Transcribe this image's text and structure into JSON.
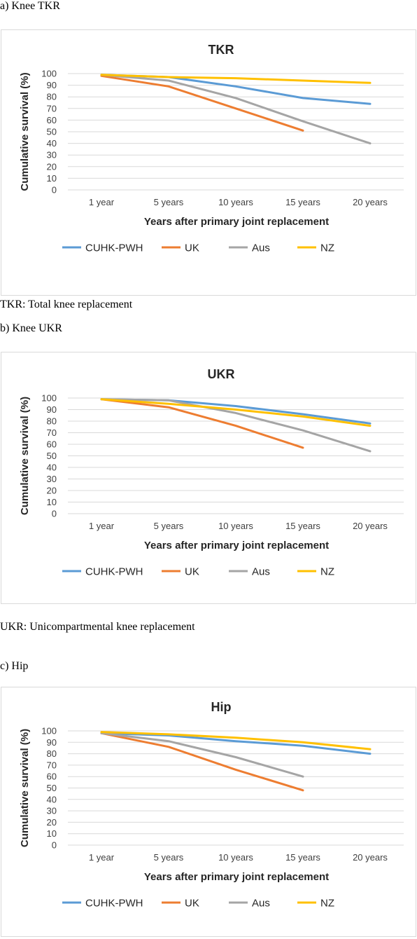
{
  "captions": {
    "a": "a) Knee TKR",
    "tkr_note": "TKR: Total knee replacement",
    "b": "b) Knee UKR",
    "ukr_note": "UKR: Unicompartmental knee replacement",
    "c": "c) Hip"
  },
  "chart_data": [
    {
      "type": "line",
      "title": "TKR",
      "xlabel": "Years after primary joint replacement",
      "ylabel": "Cumulative survival (%)",
      "ylim": [
        0,
        100
      ],
      "yticks": [
        0,
        10,
        20,
        30,
        40,
        50,
        60,
        70,
        80,
        90,
        100
      ],
      "categories": [
        "1 year",
        "5 years",
        "10 years",
        "15 years",
        "20 years"
      ],
      "grid": true,
      "legend": "bottom",
      "series": [
        {
          "name": "CUHK-PWH",
          "color": "#5b9bd5",
          "values": [
            99,
            97,
            89,
            79,
            74
          ]
        },
        {
          "name": "UK",
          "color": "#ed7d31",
          "values": [
            98,
            89,
            70,
            51,
            null
          ]
        },
        {
          "name": "Aus",
          "color": "#a5a5a5",
          "values": [
            99,
            94,
            79,
            59,
            40
          ]
        },
        {
          "name": "NZ",
          "color": "#ffc000",
          "values": [
            99,
            97,
            96,
            94,
            92
          ]
        }
      ]
    },
    {
      "type": "line",
      "title": "UKR",
      "xlabel": "Years after primary joint replacement",
      "ylabel": "Cumulative survival (%)",
      "ylim": [
        0,
        100
      ],
      "yticks": [
        0,
        10,
        20,
        30,
        40,
        50,
        60,
        70,
        80,
        90,
        100
      ],
      "categories": [
        "1 year",
        "5 years",
        "10 years",
        "15 years",
        "20 years"
      ],
      "grid": true,
      "legend": "bottom",
      "series": [
        {
          "name": "CUHK-PWH",
          "color": "#5b9bd5",
          "values": [
            99,
            98,
            93,
            86,
            78
          ]
        },
        {
          "name": "UK",
          "color": "#ed7d31",
          "values": [
            99,
            92,
            76,
            57,
            null
          ]
        },
        {
          "name": "Aus",
          "color": "#a5a5a5",
          "values": [
            99,
            98,
            87,
            72,
            54
          ]
        },
        {
          "name": "NZ",
          "color": "#ffc000",
          "values": [
            99,
            95,
            90,
            84,
            76
          ]
        }
      ]
    },
    {
      "type": "line",
      "title": "Hip",
      "xlabel": "Years after primary joint replacement",
      "ylabel": "Cumulative survival (%)",
      "ylim": [
        0,
        100
      ],
      "yticks": [
        0,
        10,
        20,
        30,
        40,
        50,
        60,
        70,
        80,
        90,
        100
      ],
      "categories": [
        "1 year",
        "5 years",
        "10 years",
        "15 years",
        "20 years"
      ],
      "grid": true,
      "legend": "bottom",
      "series": [
        {
          "name": "CUHK-PWH",
          "color": "#5b9bd5",
          "values": [
            98,
            96,
            91,
            87,
            80
          ]
        },
        {
          "name": "UK",
          "color": "#ed7d31",
          "values": [
            98,
            86,
            66,
            48,
            null
          ]
        },
        {
          "name": "Aus",
          "color": "#a5a5a5",
          "values": [
            98,
            91,
            77,
            60,
            null
          ]
        },
        {
          "name": "NZ",
          "color": "#ffc000",
          "values": [
            99,
            97,
            94,
            90,
            84
          ]
        }
      ]
    }
  ]
}
